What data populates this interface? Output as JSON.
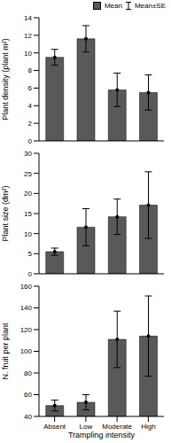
{
  "chart_data": [
    {
      "type": "bar",
      "categories": [
        "Absent",
        "Low",
        "Moderate",
        "High"
      ],
      "y_label": "Plant density (plant m²)",
      "ylim": [
        0,
        14
      ],
      "yticks": [
        0,
        2,
        4,
        6,
        8,
        10,
        12,
        14
      ],
      "tick_labels": "y",
      "legend": "upper right",
      "grid": false,
      "series": [
        {
          "name": "Mean",
          "error_name": "Mean±SE",
          "color": "#595959",
          "values": [
            9.5,
            11.6,
            5.8,
            5.5
          ],
          "error": [
            0.9,
            1.5,
            1.9,
            2.0
          ]
        }
      ]
    },
    {
      "type": "bar",
      "categories": [
        "Absent",
        "Low",
        "Moderate",
        "High"
      ],
      "y_label": "Plant size (dm²)",
      "ylim": [
        0,
        30
      ],
      "yticks": [
        0,
        5,
        10,
        15,
        20,
        25,
        30
      ],
      "tick_labels": "y",
      "grid": false,
      "series": [
        {
          "name": "Mean",
          "error_name": "Mean±SE",
          "color": "#595959",
          "values": [
            5.5,
            11.6,
            14.2,
            17.1
          ],
          "error": [
            0.9,
            4.6,
            4.4,
            8.3
          ]
        }
      ]
    },
    {
      "type": "bar",
      "categories": [
        "Absent",
        "Low",
        "Moderate",
        "High"
      ],
      "y_label": "N. fruit per plant",
      "x_label": "Trampling intensity",
      "ylim": [
        40,
        160
      ],
      "yticks": [
        40,
        60,
        80,
        100,
        120,
        140,
        160
      ],
      "grid": false,
      "series": [
        {
          "name": "Mean",
          "error_name": "Mean±SE",
          "color": "#595959",
          "values": [
            50,
            53,
            111,
            114
          ],
          "error": [
            5,
            7,
            26,
            37
          ]
        }
      ]
    }
  ]
}
